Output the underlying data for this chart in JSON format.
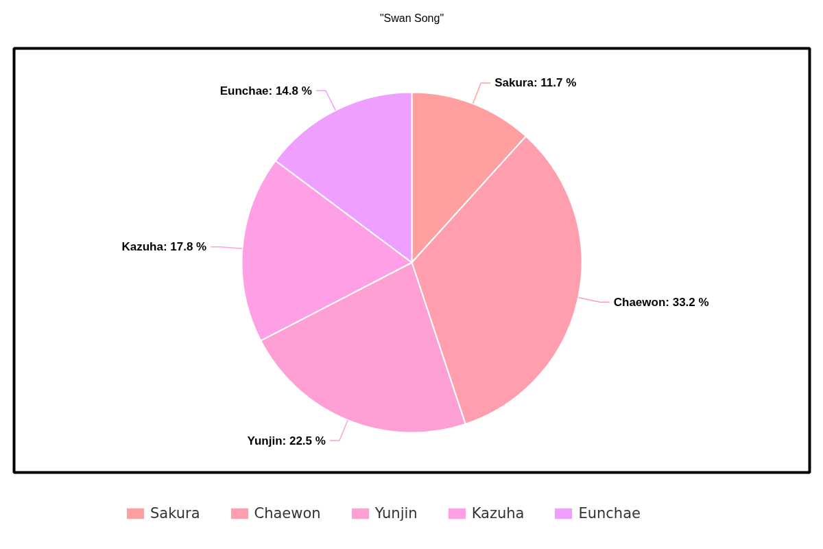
{
  "chart_data": {
    "type": "pie",
    "title": "\"Swan Song\"",
    "categories": [
      "Sakura",
      "Chaewon",
      "Yunjin",
      "Kazuha",
      "Eunchae"
    ],
    "values": [
      11.7,
      33.2,
      22.5,
      17.8,
      14.8
    ],
    "colors": [
      "#ff9f9f",
      "#ff9fae",
      "#ffa0d4",
      "#ff9fe6",
      "#ef9fff"
    ],
    "value_labels": [
      "Sakura: 11.7 %",
      "Chaewon: 33.2 %",
      "Yunjin: 22.5 %",
      "Kazuha: 17.8 %",
      "Eunchae: 14.8 %"
    ],
    "legend": "bottom"
  }
}
